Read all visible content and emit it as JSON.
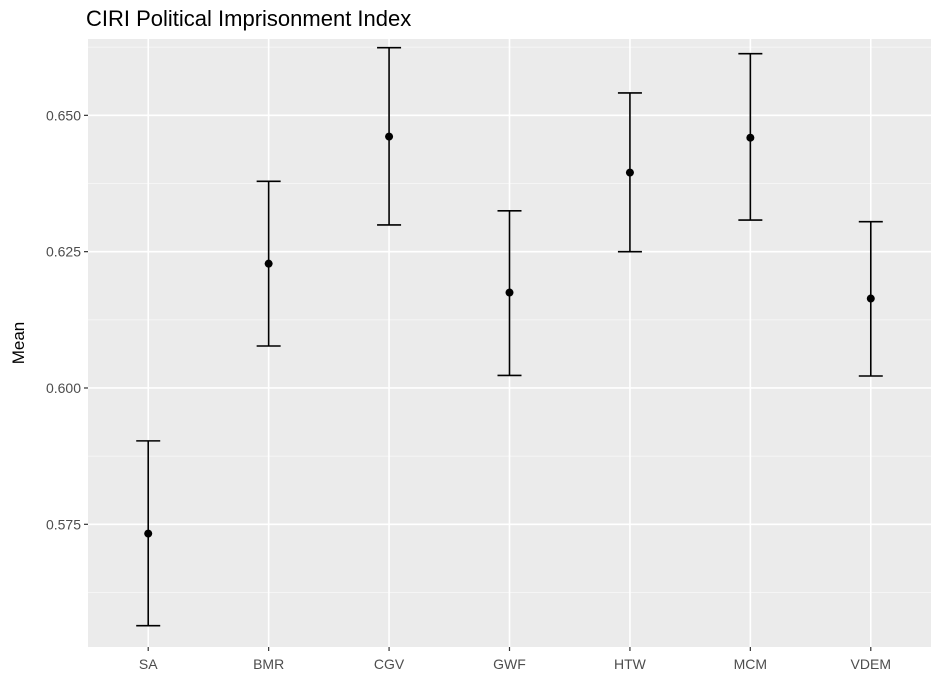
{
  "chart_data": {
    "type": "errorbar",
    "title": "CIRI Political Imprisonment Index",
    "xlabel": "",
    "ylabel": "Mean",
    "categories": [
      "SA",
      "BMR",
      "CGV",
      "GWF",
      "HTW",
      "MCM",
      "VDEM"
    ],
    "series": [
      {
        "mean": [
          0.5733,
          0.6228,
          0.6461,
          0.6175,
          0.6395,
          0.6459,
          0.6164
        ],
        "lower": [
          0.5564,
          0.6077,
          0.6299,
          0.6023,
          0.625,
          0.6308,
          0.6022
        ],
        "upper": [
          0.5903,
          0.6379,
          0.6624,
          0.6325,
          0.6541,
          0.6613,
          0.6305
        ]
      }
    ],
    "ylim": [
      0.5525,
      0.664
    ],
    "yticks": [
      0.575,
      0.6,
      0.625,
      0.65
    ],
    "ytick_labels": [
      "0.575",
      "0.600",
      "0.625",
      "0.650"
    ],
    "grid": true,
    "colors": {
      "panel_background": "#ebebeb",
      "grid_major": "#ffffff",
      "grid_minor": "#f5f5f5",
      "marks": "#000000",
      "tick_label": "#4d4d4d",
      "tick_mark": "#333333"
    }
  }
}
